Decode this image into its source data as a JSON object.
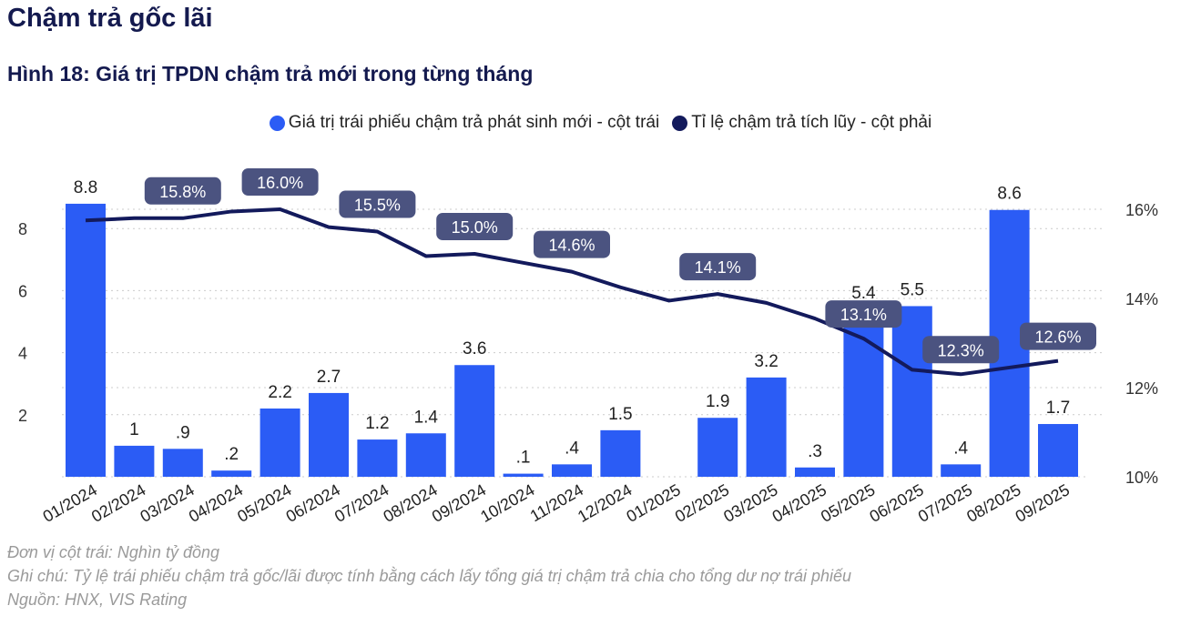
{
  "section_title": "Chậm trả gốc lãi",
  "figure_title": "Hình 18: Giá trị TPDN chậm trả mới trong từng tháng",
  "colors": {
    "bar": "#2b5cf5",
    "line": "#131a5c",
    "label_box": "#4b5380",
    "title": "#141a4f"
  },
  "chart_data": {
    "type": "bar+line",
    "categories": [
      "01/2024",
      "02/2024",
      "03/2024",
      "04/2024",
      "05/2024",
      "06/2024",
      "07/2024",
      "08/2024",
      "09/2024",
      "10/2024",
      "11/2024",
      "12/2024",
      "01/2025",
      "02/2025",
      "03/2025",
      "04/2025",
      "05/2025",
      "06/2025",
      "07/2025",
      "08/2025",
      "09/2025"
    ],
    "series": [
      {
        "name": "Giá trị trái phiếu chậm trả phát sinh mới - cột trái",
        "type": "bar",
        "axis": "left",
        "values": [
          8.8,
          1,
          0.9,
          0.2,
          2.2,
          2.7,
          1.2,
          1.4,
          3.6,
          0.1,
          0.4,
          1.5,
          null,
          1.9,
          3.2,
          0.3,
          5.4,
          5.5,
          0.4,
          8.6,
          1.7
        ],
        "data_labels": [
          "8.8",
          "1",
          ".9",
          ".2",
          "2.2",
          "2.7",
          "1.2",
          "1.4",
          "3.6",
          ".1",
          ".4",
          "1.5",
          "",
          "1.9",
          "3.2",
          ".3",
          "5.4",
          "5.5",
          ".4",
          "8.6",
          "1.7"
        ]
      },
      {
        "name": "Tỉ lệ chậm trả tích lũy - cột phải",
        "type": "line",
        "axis": "right",
        "values": [
          15.75,
          15.8,
          15.8,
          15.95,
          16.0,
          15.6,
          15.5,
          14.95,
          15.0,
          14.8,
          14.6,
          14.25,
          13.95,
          14.1,
          13.9,
          13.55,
          13.1,
          12.4,
          12.3,
          12.45,
          12.6
        ],
        "data_labels": [
          "",
          "",
          "15.8%",
          "",
          "16.0%",
          "",
          "15.5%",
          "",
          "15.0%",
          "",
          "14.6%",
          "",
          "",
          "14.1%",
          "",
          "",
          "13.1%",
          "",
          "12.3%",
          "",
          "12.6%"
        ]
      }
    ],
    "left_axis": {
      "ylim": [
        0,
        9
      ],
      "ticks": [
        "2",
        "4",
        "6",
        "8"
      ]
    },
    "right_axis": {
      "ylim": [
        10,
        16.4
      ],
      "ticks": [
        "10%",
        "12%",
        "14%",
        "16%"
      ]
    },
    "grid": "dotted horizontal",
    "legend": "top-center"
  },
  "notes": {
    "unit": "Đơn vị cột trái: Nghìn tỷ đồng",
    "note": "Ghi chú: Tỷ lệ trái phiếu chậm trả gốc/lãi được tính bằng cách lấy tổng giá trị chậm trả chia cho tổng dư nợ trái phiếu",
    "source": "Nguồn: HNX, VIS Rating"
  }
}
